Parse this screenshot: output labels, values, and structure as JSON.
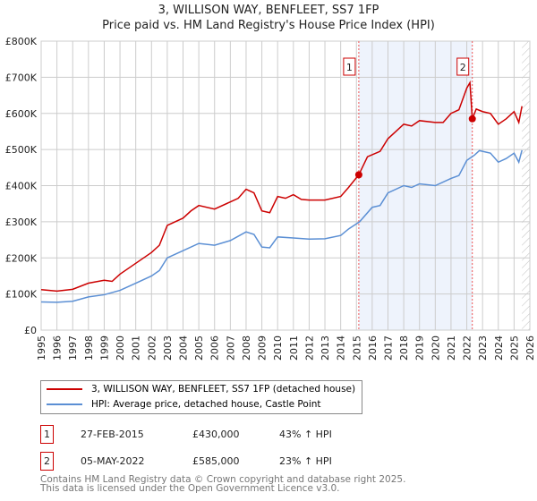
{
  "chart_data": {
    "type": "line",
    "title": "3, WILLISON WAY, BENFLEET, SS7 1FP",
    "subtitle": "Price paid vs. HM Land Registry's House Price Index (HPI)",
    "xlim": [
      1995,
      2026
    ],
    "ylim": [
      0,
      800000
    ],
    "x_ticks": [
      "1995",
      "1996",
      "1997",
      "1998",
      "1999",
      "2000",
      "2001",
      "2002",
      "2003",
      "2004",
      "2005",
      "2006",
      "2007",
      "2008",
      "2009",
      "2010",
      "2011",
      "2012",
      "2013",
      "2014",
      "2015",
      "2016",
      "2017",
      "2018",
      "2019",
      "2020",
      "2021",
      "2022",
      "2023",
      "2024",
      "2025",
      "2026"
    ],
    "y_ticks": [
      "£0",
      "£100K",
      "£200K",
      "£300K",
      "£400K",
      "£500K",
      "£600K",
      "£700K",
      "£800K"
    ],
    "grid": true,
    "series": [
      {
        "name": "3, WILLISON WAY, BENFLEET, SS7 1FP (detached house)",
        "color": "#cc0000",
        "x": [
          1995,
          1996,
          1997,
          1998,
          1999,
          1999.5,
          2000,
          2001,
          2002,
          2002.5,
          2003,
          2004,
          2004.5,
          2005,
          2006,
          2007,
          2007.5,
          2008,
          2008.5,
          2009,
          2009.5,
          2010,
          2010.5,
          2011,
          2011.5,
          2012,
          2013,
          2014,
          2014.5,
          2015.15,
          2015.7,
          2016.5,
          2017,
          2017.5,
          2018,
          2018.5,
          2019,
          2020,
          2020.5,
          2021,
          2021.5,
          2022,
          2022.2,
          2022.35,
          2022.6,
          2023,
          2023.5,
          2024,
          2024.5,
          2025,
          2025.3,
          2025.5
        ],
        "y": [
          112,
          108,
          113,
          130,
          138,
          135,
          155,
          185,
          215,
          235,
          290,
          310,
          330,
          345,
          335,
          355,
          365,
          390,
          380,
          330,
          325,
          370,
          365,
          375,
          362,
          360,
          360,
          370,
          395,
          430,
          480,
          495,
          530,
          550,
          570,
          565,
          580,
          575,
          575,
          600,
          610,
          670,
          685,
          585,
          612,
          605,
          600,
          570,
          585,
          605,
          575,
          620
        ]
      },
      {
        "name": "HPI: Average price, detached house, Castle Point",
        "color": "#5b8fd4",
        "x": [
          1995,
          1996,
          1997,
          1998,
          1999,
          2000,
          2001,
          2002,
          2002.5,
          2003,
          2004,
          2005,
          2006,
          2007,
          2008,
          2008.5,
          2009,
          2009.5,
          2010,
          2011,
          2012,
          2013,
          2014,
          2014.5,
          2015.2,
          2016,
          2016.5,
          2017,
          2018,
          2018.5,
          2019,
          2020,
          2021,
          2021.5,
          2022,
          2022.5,
          2022.8,
          2023.5,
          2024,
          2024.5,
          2025,
          2025.3,
          2025.5
        ],
        "y": [
          78,
          77,
          80,
          92,
          98,
          110,
          130,
          150,
          165,
          200,
          220,
          240,
          235,
          248,
          272,
          265,
          230,
          228,
          258,
          255,
          252,
          253,
          262,
          280,
          300,
          340,
          345,
          380,
          400,
          395,
          405,
          400,
          420,
          428,
          470,
          485,
          497,
          490,
          465,
          475,
          490,
          465,
          498
        ]
      }
    ],
    "y_unit": "thousand GBP",
    "sales": [
      {
        "label": "1",
        "x": 2015.15,
        "y": 430,
        "date": "27-FEB-2015",
        "price": "£430,000",
        "hpi": "43% ↑ HPI"
      },
      {
        "label": "2",
        "x": 2022.35,
        "y": 585,
        "date": "05-MAY-2022",
        "price": "£585,000",
        "hpi": "23% ↑ HPI"
      }
    ],
    "forecast_from": 2025.5
  },
  "footer": {
    "line1": "Contains HM Land Registry data © Crown copyright and database right 2025.",
    "line2": "This data is licensed under the Open Government Licence v3.0."
  }
}
